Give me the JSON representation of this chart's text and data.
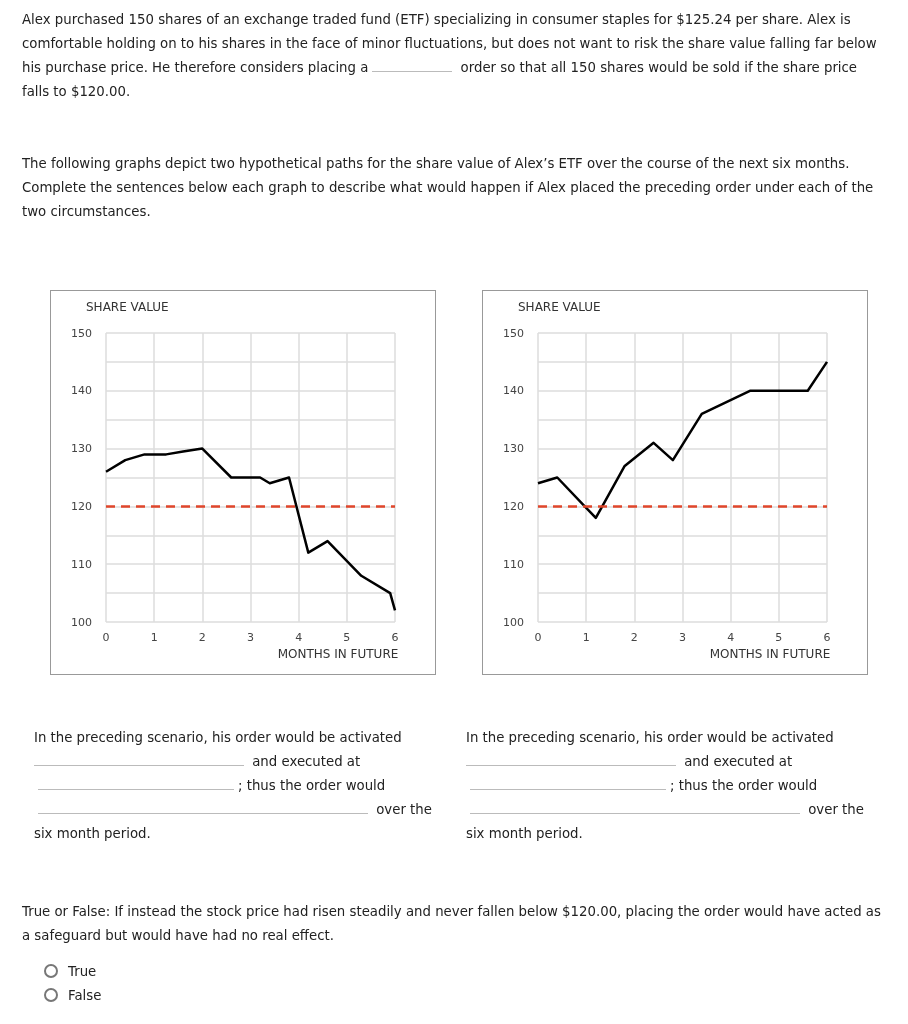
{
  "chart_data": [
    {
      "type": "other",
      "annotations": [
        "Alex purchased 150 shares of an exchange traded fund (ETF) specializing in consumer staples for $125.24 per share. Alex is comfortable holding on to his shares in the face of minor fluctuations, but does not want to risk the share value falling far below his purchase price. He therefore considers placing a",
        "order so that all 150 shares would be sold if the share price falls to $120.00.",
        "The following graphs depict two hypothetical paths for the share value of Alex’s ETF over the course of the next six months. Complete the sentences below each graph to describe what would happen if Alex placed the preceding order under each of the two circumstances."
      ]
    },
    {
      "type": "line",
      "ylabel": "SHARE VALUE",
      "xlabel": "MONTHS IN FUTURE",
      "series": [
        {
          "color": "#000000",
          "x": [
            0,
            0.4,
            0.8,
            1.25,
            1.6,
            2,
            2.6,
            3.2,
            3.4,
            3.8,
            4.2,
            4.6,
            5.3,
            5.9,
            6
          ],
          "values": [
            126,
            128,
            129,
            129,
            129.5,
            130,
            125,
            125,
            124,
            125,
            112,
            114,
            108,
            105,
            102
          ]
        }
      ],
      "xlim": [
        0,
        6
      ],
      "xticks": [
        0,
        1,
        2,
        3,
        4,
        5,
        6
      ],
      "ylim": [
        100,
        150
      ],
      "yticks": [
        100,
        {
          "value": 105,
          "label": null
        },
        110,
        {
          "value": 115,
          "label": null
        },
        120,
        {
          "value": 125,
          "label": null
        },
        130,
        {
          "value": 135,
          "label": null
        },
        140,
        {
          "value": 145,
          "label": null
        },
        150
      ],
      "grid": true,
      "marker": "none",
      "line_style": "solid",
      "ref_lines": [
        {
          "axis": "y",
          "value": 120,
          "color": "#e0462b",
          "line_style": "dashed"
        }
      ],
      "annotations": [
        "In the preceding scenario, his order would be activated",
        "and executed at",
        "; thus the order would",
        "over the six month period."
      ]
    },
    {
      "type": "line",
      "ylabel": "SHARE VALUE",
      "xlabel": "MONTHS IN FUTURE",
      "series": [
        {
          "color": "#000000",
          "x": [
            0,
            0.4,
            1.2,
            1.8,
            2.4,
            2.8,
            3.4,
            4.4,
            5.6,
            6
          ],
          "values": [
            124,
            125,
            118,
            127,
            131,
            128,
            136,
            140,
            140,
            145
          ]
        }
      ],
      "xlim": [
        0,
        6
      ],
      "xticks": [
        0,
        1,
        2,
        3,
        4,
        5,
        6
      ],
      "ylim": [
        100,
        150
      ],
      "yticks": [
        100,
        {
          "value": 105,
          "label": null
        },
        110,
        {
          "value": 115,
          "label": null
        },
        120,
        {
          "value": 125,
          "label": null
        },
        130,
        {
          "value": 135,
          "label": null
        },
        140,
        {
          "value": 145,
          "label": null
        },
        150
      ],
      "grid": true,
      "marker": "none",
      "line_style": "solid",
      "ref_lines": [
        {
          "axis": "y",
          "value": 120,
          "color": "#e0462b",
          "line_style": "dashed"
        }
      ],
      "annotations": [
        "In the preceding scenario, his order would be activated",
        "and executed at",
        "; thus the order would",
        "over the six month period."
      ]
    },
    {
      "type": "other",
      "annotations": [
        "True or False: If instead the stock price had risen steadily and never fallen below $120.00, placing the order would have acted as a safeguard but would have had no real effect.",
        "True",
        "False"
      ]
    }
  ]
}
